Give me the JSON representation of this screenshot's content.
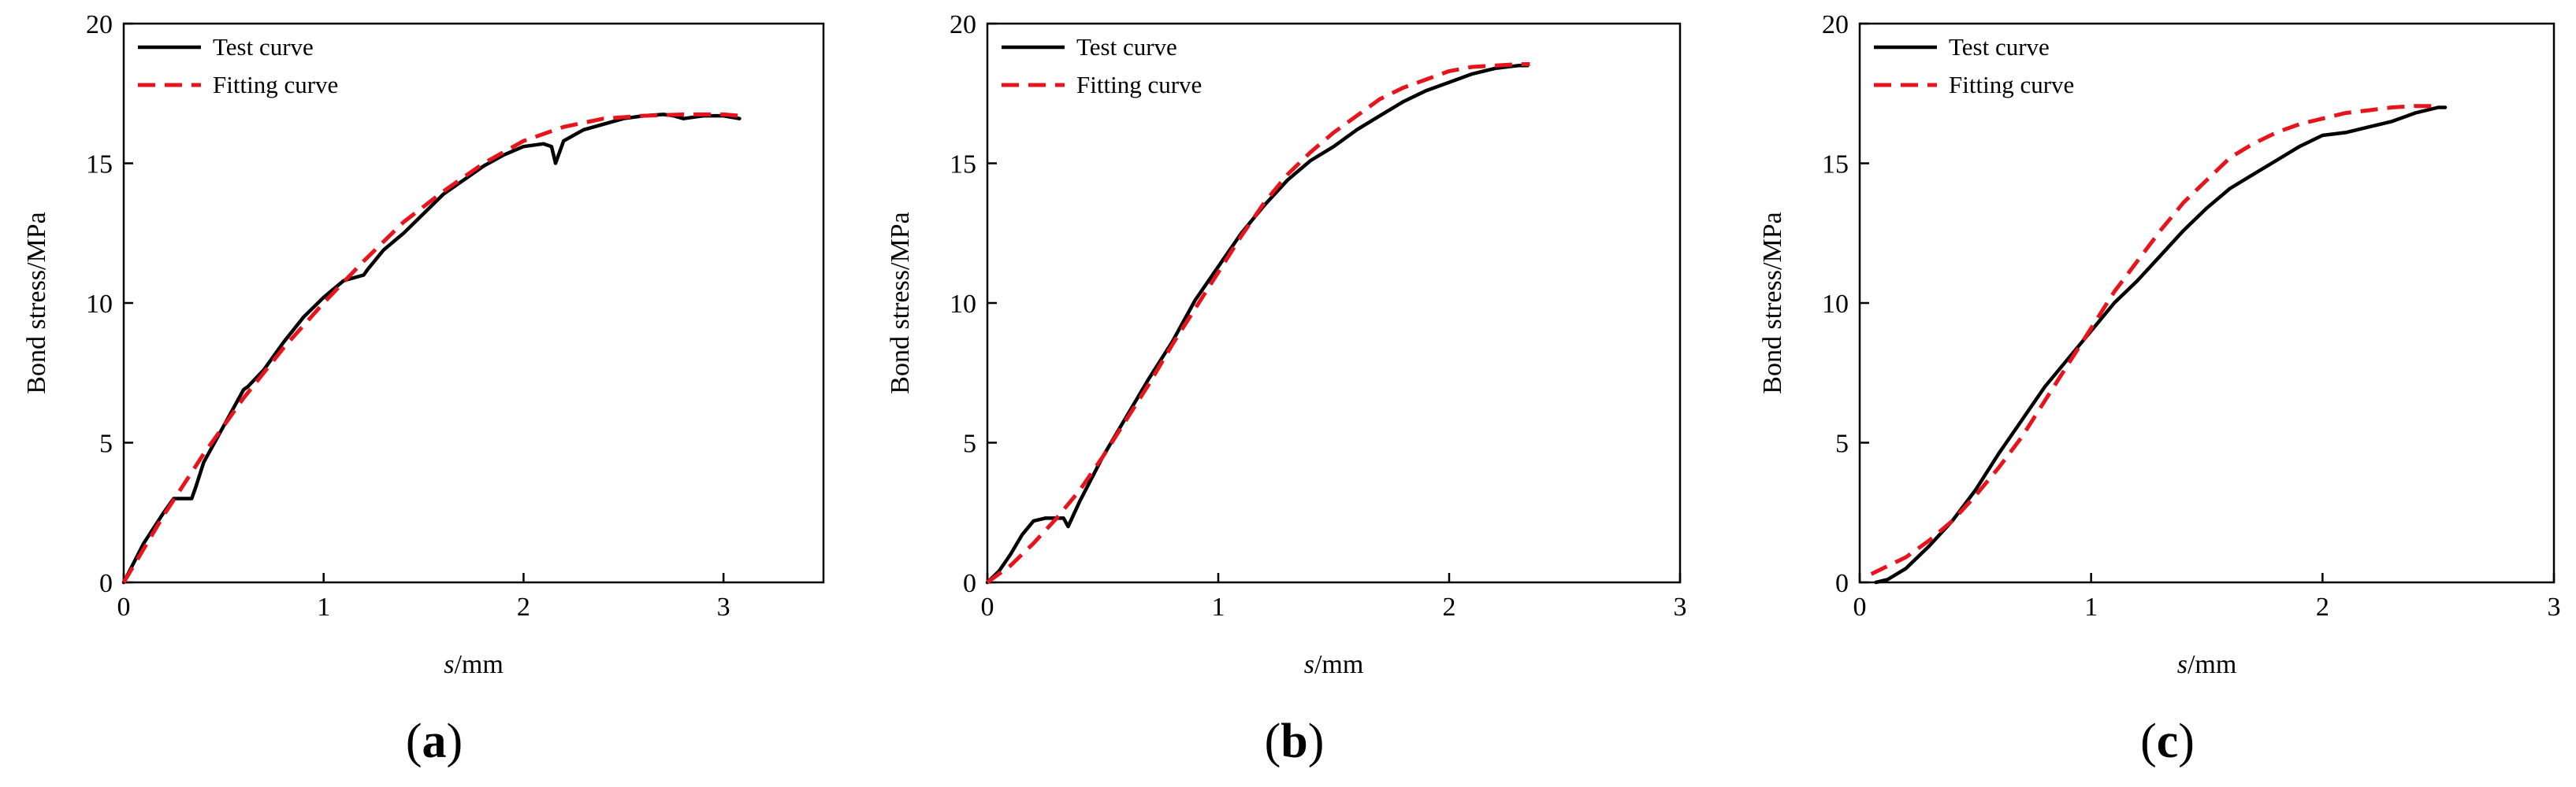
{
  "legend": {
    "test": "Test curve",
    "fit": "Fitting curve"
  },
  "colors": {
    "test": "#000000",
    "fit": "#e8141c",
    "axis": "#000000"
  },
  "chart_data": [
    {
      "type": "line",
      "panel_label": "a",
      "xlabel_italic": "s",
      "xlabel_rest": "/mm",
      "ylabel": "Bond stress/MPa",
      "xlim": [
        0,
        3.5
      ],
      "ylim": [
        0,
        20
      ],
      "xticks": [
        0,
        1,
        2,
        3
      ],
      "yticks": [
        0,
        5,
        10,
        15,
        20
      ],
      "legend_position": "top-left",
      "series": [
        {
          "name": "Test curve",
          "style": "solid",
          "x": [
            0,
            0.05,
            0.1,
            0.2,
            0.25,
            0.3,
            0.34,
            0.36,
            0.4,
            0.5,
            0.6,
            0.62,
            0.7,
            0.8,
            0.9,
            1.0,
            1.1,
            1.2,
            1.22,
            1.3,
            1.4,
            1.5,
            1.6,
            1.7,
            1.8,
            1.9,
            2.0,
            2.1,
            2.14,
            2.16,
            2.2,
            2.3,
            2.4,
            2.5,
            2.6,
            2.7,
            2.75,
            2.8,
            2.9,
            3.0,
            3.08
          ],
          "y": [
            0,
            0.7,
            1.4,
            2.5,
            3.0,
            3.0,
            3.0,
            3.4,
            4.3,
            5.6,
            6.9,
            7.0,
            7.6,
            8.6,
            9.5,
            10.2,
            10.8,
            11.0,
            11.2,
            11.9,
            12.5,
            13.2,
            13.9,
            14.4,
            14.9,
            15.3,
            15.6,
            15.7,
            15.6,
            15.0,
            15.8,
            16.2,
            16.4,
            16.6,
            16.7,
            16.75,
            16.7,
            16.6,
            16.7,
            16.7,
            16.6
          ]
        },
        {
          "name": "Fitting curve",
          "style": "dashed",
          "x": [
            0,
            0.1,
            0.2,
            0.3,
            0.4,
            0.5,
            0.6,
            0.7,
            0.8,
            0.9,
            1.0,
            1.2,
            1.4,
            1.6,
            1.8,
            2.0,
            2.2,
            2.4,
            2.6,
            2.8,
            3.0,
            3.08
          ],
          "y": [
            0,
            1.2,
            2.4,
            3.5,
            4.6,
            5.6,
            6.6,
            7.5,
            8.4,
            9.2,
            10.0,
            11.5,
            12.9,
            14.0,
            15.0,
            15.8,
            16.3,
            16.6,
            16.7,
            16.75,
            16.75,
            16.7
          ]
        }
      ]
    },
    {
      "type": "line",
      "panel_label": "b",
      "xlabel_italic": "s",
      "xlabel_rest": "/mm",
      "ylabel": "Bond stress/MPa",
      "xlim": [
        0,
        3
      ],
      "ylim": [
        0,
        20
      ],
      "xticks": [
        0,
        1,
        2,
        3
      ],
      "yticks": [
        0,
        5,
        10,
        15,
        20
      ],
      "legend_position": "top-left",
      "series": [
        {
          "name": "Test curve",
          "style": "solid",
          "x": [
            0,
            0.05,
            0.1,
            0.15,
            0.2,
            0.25,
            0.3,
            0.33,
            0.35,
            0.4,
            0.5,
            0.6,
            0.7,
            0.8,
            0.9,
            1.0,
            1.1,
            1.2,
            1.3,
            1.4,
            1.5,
            1.6,
            1.7,
            1.8,
            1.9,
            2.0,
            2.1,
            2.2,
            2.3,
            2.34
          ],
          "y": [
            0,
            0.4,
            1.0,
            1.7,
            2.2,
            2.3,
            2.3,
            2.3,
            2.0,
            2.9,
            4.5,
            5.9,
            7.3,
            8.6,
            10.1,
            11.3,
            12.5,
            13.5,
            14.4,
            15.1,
            15.6,
            16.2,
            16.7,
            17.2,
            17.6,
            17.9,
            18.2,
            18.4,
            18.5,
            18.5
          ]
        },
        {
          "name": "Fitting curve",
          "style": "dashed",
          "x": [
            0,
            0.1,
            0.2,
            0.3,
            0.4,
            0.5,
            0.6,
            0.7,
            0.8,
            0.9,
            1.0,
            1.1,
            1.2,
            1.3,
            1.4,
            1.5,
            1.6,
            1.7,
            1.8,
            1.9,
            2.0,
            2.1,
            2.2,
            2.3,
            2.35
          ],
          "y": [
            0,
            0.6,
            1.4,
            2.3,
            3.3,
            4.5,
            5.8,
            7.1,
            8.5,
            9.8,
            11.1,
            12.4,
            13.6,
            14.6,
            15.4,
            16.1,
            16.7,
            17.3,
            17.7,
            18.0,
            18.3,
            18.45,
            18.5,
            18.55,
            18.55
          ]
        }
      ]
    },
    {
      "type": "line",
      "panel_label": "c",
      "xlabel_italic": "s",
      "xlabel_rest": "/mm",
      "ylabel": "Bond stress/MPa",
      "xlim": [
        0,
        3
      ],
      "ylim": [
        0,
        20
      ],
      "xticks": [
        0,
        1,
        2,
        3
      ],
      "yticks": [
        0,
        5,
        10,
        15,
        20
      ],
      "legend_position": "top-left",
      "series": [
        {
          "name": "Test curve",
          "style": "solid",
          "x": [
            0.07,
            0.12,
            0.2,
            0.3,
            0.4,
            0.5,
            0.6,
            0.7,
            0.8,
            0.9,
            1.0,
            1.1,
            1.2,
            1.3,
            1.4,
            1.5,
            1.6,
            1.7,
            1.8,
            1.9,
            2.0,
            2.1,
            2.2,
            2.3,
            2.4,
            2.5,
            2.53
          ],
          "y": [
            0,
            0.1,
            0.5,
            1.3,
            2.2,
            3.3,
            4.6,
            5.8,
            7.0,
            8.0,
            9.0,
            10.0,
            10.8,
            11.7,
            12.6,
            13.4,
            14.1,
            14.6,
            15.1,
            15.6,
            16.0,
            16.1,
            16.3,
            16.5,
            16.8,
            17.0,
            17.0
          ]
        },
        {
          "name": "Fitting curve",
          "style": "dashed",
          "x": [
            0.05,
            0.2,
            0.3,
            0.4,
            0.5,
            0.6,
            0.7,
            0.8,
            0.9,
            1.0,
            1.1,
            1.2,
            1.3,
            1.4,
            1.5,
            1.6,
            1.7,
            1.8,
            1.9,
            2.0,
            2.1,
            2.2,
            2.3,
            2.4,
            2.5
          ],
          "y": [
            0.3,
            0.9,
            1.5,
            2.2,
            3.1,
            4.1,
            5.2,
            6.5,
            7.8,
            9.1,
            10.4,
            11.5,
            12.6,
            13.6,
            14.4,
            15.2,
            15.7,
            16.1,
            16.4,
            16.6,
            16.8,
            16.9,
            17.0,
            17.05,
            17.05
          ]
        }
      ]
    }
  ]
}
